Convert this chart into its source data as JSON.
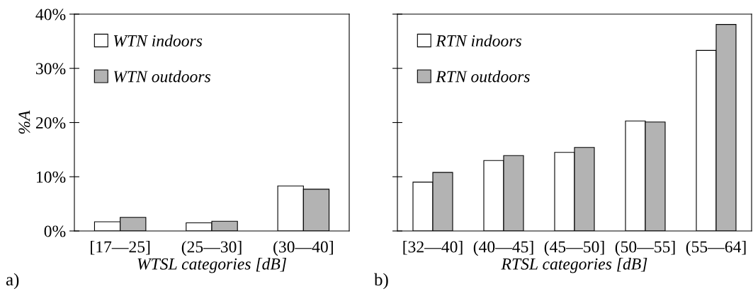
{
  "chart_data": [
    {
      "type": "bar",
      "categories": [
        "[17—25]",
        "(25—30]",
        "(30—40]"
      ],
      "xlabel": "WTSL categories [dB]",
      "ylabel": "%A",
      "series": [
        {
          "name": "WTN indoors",
          "color": "#ffffff",
          "values": [
            1.7,
            1.5,
            8.3
          ]
        },
        {
          "name": "WTN outdoors",
          "color": "#b3b3b3",
          "values": [
            2.5,
            1.8,
            7.7
          ]
        }
      ],
      "ylim": [
        0,
        40
      ],
      "yticks": [
        {
          "value": 0,
          "label": "0%"
        },
        {
          "value": 10,
          "label": "10%"
        },
        {
          "value": 20,
          "label": "20%"
        },
        {
          "value": 30,
          "label": "30%"
        },
        {
          "value": 40,
          "label": "40%"
        }
      ],
      "legend": "top left",
      "grid": false,
      "annotations": [
        "a)"
      ]
    },
    {
      "type": "bar",
      "categories": [
        "[32—40]",
        "(40—45]",
        "(45—50]",
        "(50—55]",
        "(55—64]"
      ],
      "xlabel": "RTSL categories [dB]",
      "series": [
        {
          "name": "RTN indoors",
          "color": "#ffffff",
          "values": [
            9.0,
            13.0,
            14.5,
            20.3,
            33.3
          ]
        },
        {
          "name": "RTN outdoors",
          "color": "#b3b3b3",
          "values": [
            10.8,
            13.9,
            15.4,
            20.1,
            38.1
          ]
        }
      ],
      "ylim": [
        0,
        40
      ],
      "yticks": [
        0,
        10,
        20,
        30,
        40
      ],
      "tick_labels": "x",
      "legend": "top left",
      "grid": false,
      "annotations": [
        "b)"
      ]
    }
  ]
}
